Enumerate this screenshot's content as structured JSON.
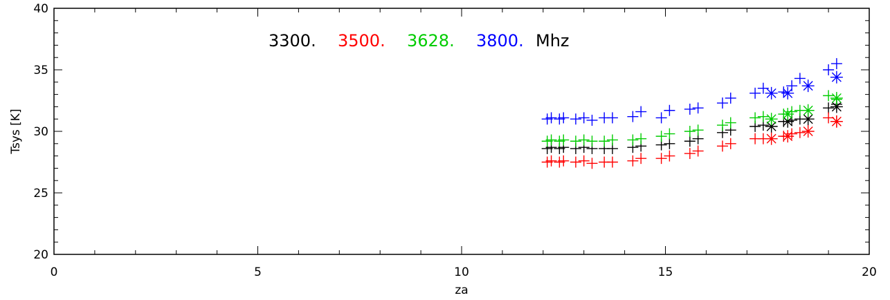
{
  "chart_data": {
    "type": "scatter",
    "title": "",
    "xlabel": "za",
    "ylabel": "Tsys [K]",
    "xlim": [
      0,
      20
    ],
    "ylim": [
      20,
      40
    ],
    "x_ticks": [
      0,
      5,
      10,
      15,
      20
    ],
    "y_ticks": [
      20,
      25,
      30,
      35,
      40
    ],
    "grid": false,
    "legend": {
      "placement": "top-left",
      "unit_label": "Mhz",
      "entries": [
        {
          "label": "3300.",
          "color": "#000000"
        },
        {
          "label": "3500.",
          "color": "#ff0000"
        },
        {
          "label": "3628.",
          "color": "#00cc00"
        },
        {
          "label": "3800.",
          "color": "#0000ff"
        }
      ]
    },
    "series": [
      {
        "color": "#000000",
        "plus": [
          [
            12.1,
            28.6
          ],
          [
            12.2,
            28.7
          ],
          [
            12.4,
            28.6
          ],
          [
            12.5,
            28.7
          ],
          [
            12.8,
            28.6
          ],
          [
            13.0,
            28.7
          ],
          [
            13.2,
            28.6
          ],
          [
            13.5,
            28.6
          ],
          [
            13.7,
            28.6
          ],
          [
            14.2,
            28.7
          ],
          [
            14.4,
            28.8
          ],
          [
            14.9,
            28.9
          ],
          [
            15.1,
            29.0
          ],
          [
            15.6,
            29.2
          ],
          [
            15.8,
            29.4
          ],
          [
            16.4,
            29.9
          ],
          [
            16.6,
            30.1
          ],
          [
            17.2,
            30.4
          ],
          [
            17.4,
            30.5
          ],
          [
            17.9,
            30.8
          ],
          [
            18.1,
            30.9
          ],
          [
            18.3,
            31.0
          ],
          [
            19.0,
            31.9
          ],
          [
            19.2,
            32.2
          ]
        ],
        "star": [
          [
            17.6,
            30.4
          ],
          [
            18.0,
            30.8
          ],
          [
            18.5,
            31.0
          ],
          [
            19.2,
            32.0
          ]
        ]
      },
      {
        "color": "#ff0000",
        "plus": [
          [
            12.1,
            27.5
          ],
          [
            12.2,
            27.6
          ],
          [
            12.4,
            27.5
          ],
          [
            12.5,
            27.6
          ],
          [
            12.8,
            27.5
          ],
          [
            13.0,
            27.6
          ],
          [
            13.2,
            27.4
          ],
          [
            13.5,
            27.5
          ],
          [
            13.7,
            27.5
          ],
          [
            14.2,
            27.6
          ],
          [
            14.4,
            27.8
          ],
          [
            14.9,
            27.8
          ],
          [
            15.1,
            28.0
          ],
          [
            15.6,
            28.2
          ],
          [
            15.8,
            28.4
          ],
          [
            16.4,
            28.8
          ],
          [
            16.6,
            29.0
          ],
          [
            17.2,
            29.4
          ],
          [
            17.4,
            29.4
          ],
          [
            17.9,
            29.6
          ],
          [
            18.1,
            29.8
          ],
          [
            18.3,
            29.9
          ],
          [
            19.0,
            31.1
          ],
          [
            19.2,
            30.8
          ]
        ],
        "star": [
          [
            17.6,
            29.4
          ],
          [
            18.0,
            29.6
          ],
          [
            18.5,
            30.0
          ],
          [
            19.2,
            30.8
          ]
        ]
      },
      {
        "color": "#00cc00",
        "plus": [
          [
            12.1,
            29.2
          ],
          [
            12.2,
            29.3
          ],
          [
            12.4,
            29.2
          ],
          [
            12.5,
            29.3
          ],
          [
            12.8,
            29.2
          ],
          [
            13.0,
            29.3
          ],
          [
            13.2,
            29.2
          ],
          [
            13.5,
            29.2
          ],
          [
            13.7,
            29.3
          ],
          [
            14.2,
            29.3
          ],
          [
            14.4,
            29.4
          ],
          [
            14.9,
            29.6
          ],
          [
            15.1,
            29.8
          ],
          [
            15.6,
            30.0
          ],
          [
            15.8,
            30.1
          ],
          [
            16.4,
            30.5
          ],
          [
            16.6,
            30.7
          ],
          [
            17.2,
            31.1
          ],
          [
            17.4,
            31.2
          ],
          [
            17.9,
            31.4
          ],
          [
            18.1,
            31.6
          ],
          [
            18.3,
            31.7
          ],
          [
            19.0,
            32.9
          ],
          [
            19.2,
            32.6
          ]
        ],
        "star": [
          [
            17.6,
            31.0
          ],
          [
            18.0,
            31.4
          ],
          [
            18.5,
            31.7
          ],
          [
            19.2,
            32.7
          ]
        ]
      },
      {
        "color": "#0000ff",
        "plus": [
          [
            12.1,
            31.0
          ],
          [
            12.2,
            31.1
          ],
          [
            12.4,
            31.0
          ],
          [
            12.5,
            31.1
          ],
          [
            12.8,
            31.0
          ],
          [
            13.0,
            31.1
          ],
          [
            13.2,
            30.9
          ],
          [
            13.5,
            31.1
          ],
          [
            13.7,
            31.1
          ],
          [
            14.2,
            31.2
          ],
          [
            14.4,
            31.6
          ],
          [
            14.9,
            31.1
          ],
          [
            15.1,
            31.7
          ],
          [
            15.6,
            31.8
          ],
          [
            15.8,
            31.9
          ],
          [
            16.4,
            32.3
          ],
          [
            16.6,
            32.7
          ],
          [
            17.2,
            33.1
          ],
          [
            17.4,
            33.5
          ],
          [
            17.9,
            33.2
          ],
          [
            18.1,
            33.7
          ],
          [
            18.3,
            34.3
          ],
          [
            19.0,
            35.0
          ],
          [
            19.2,
            35.5
          ]
        ],
        "star": [
          [
            17.6,
            33.1
          ],
          [
            18.0,
            33.1
          ],
          [
            18.5,
            33.7
          ],
          [
            19.2,
            34.4
          ]
        ]
      }
    ]
  }
}
